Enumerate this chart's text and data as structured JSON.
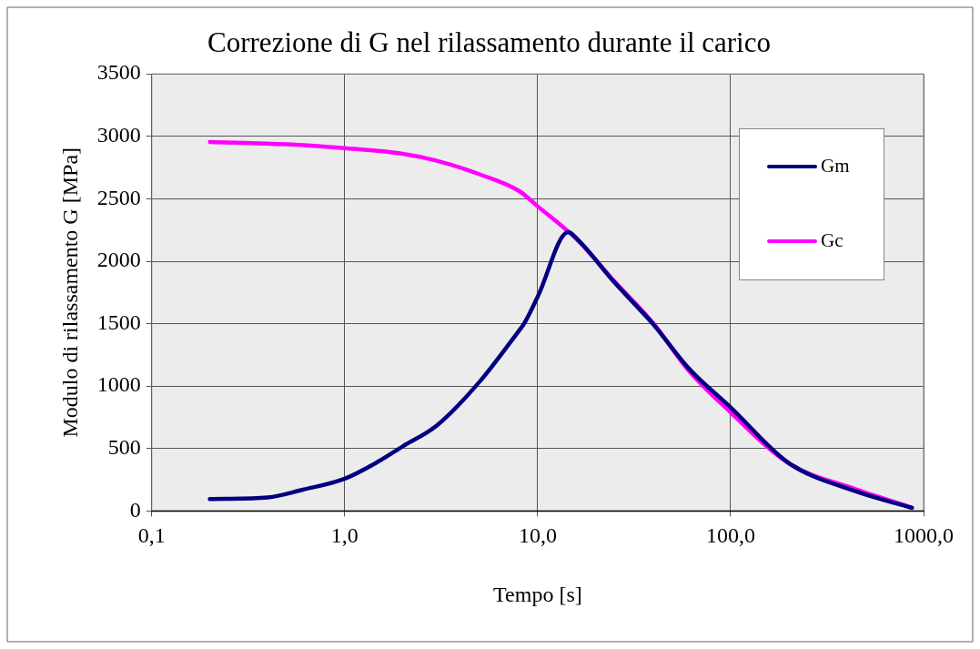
{
  "chart_data": {
    "type": "line",
    "title": "Correzione di G nel rilassamento durante il carico",
    "xlabel": "Tempo [s]",
    "ylabel": "Modulo di rilassamento G [MPa]",
    "log": "x",
    "xlim": [
      0.1,
      1000
    ],
    "xticks": [
      {
        "value": 0.1,
        "label": "0,1"
      },
      {
        "value": 1,
        "label": "1,0"
      },
      {
        "value": 10,
        "label": "10,0"
      },
      {
        "value": 100,
        "label": "100,0"
      },
      {
        "value": 1000,
        "label": "1000,0"
      }
    ],
    "ylim": [
      0,
      3500
    ],
    "yticks": [
      0,
      500,
      1000,
      1500,
      2000,
      2500,
      3000,
      3500
    ],
    "grid": true,
    "legend": "top right",
    "marker": "none",
    "line_style": "solid",
    "series": [
      {
        "name": "Gm",
        "color": "#000080",
        "x": [
          0.2,
          0.4,
          0.6,
          1,
          1.5,
          2,
          3,
          5,
          8,
          8.5,
          10,
          14.4,
          16.2,
          25,
          40,
          60,
          100,
          200,
          440,
          870
        ],
        "values": [
          95,
          109,
          169,
          259,
          398,
          518,
          684,
          1035,
          1444,
          1500,
          1716,
          2233,
          2170,
          1830,
          1490,
          1150,
          830,
          385,
          160,
          25
        ]
      },
      {
        "name": "Gc",
        "color": "#ff00ff",
        "x": [
          0.2,
          0.5,
          1,
          2,
          3,
          5,
          8,
          10,
          16.2,
          25,
          40,
          60,
          100,
          200,
          440,
          870
        ],
        "values": [
          2955,
          2936,
          2905,
          2860,
          2805,
          2696,
          2563,
          2440,
          2165,
          1839,
          1498,
          1133,
          790,
          382,
          177,
          28
        ]
      }
    ]
  }
}
